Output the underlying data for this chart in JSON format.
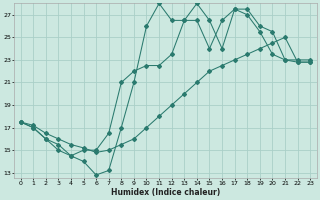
{
  "xlabel": "Humidex (Indice chaleur)",
  "bg_color": "#cce8e0",
  "grid_color": "#aacfc8",
  "line_color": "#2a7a6e",
  "xlim": [
    -0.5,
    23.5
  ],
  "ylim": [
    12.5,
    28.0
  ],
  "xticks": [
    0,
    1,
    2,
    3,
    4,
    5,
    6,
    7,
    8,
    9,
    10,
    11,
    12,
    13,
    14,
    15,
    16,
    17,
    18,
    19,
    20,
    21,
    22,
    23
  ],
  "yticks": [
    13,
    15,
    17,
    19,
    21,
    23,
    25,
    27
  ],
  "line1_x": [
    0,
    1,
    2,
    3,
    4,
    5,
    6,
    7,
    8,
    9,
    10,
    11,
    12,
    13,
    14,
    15,
    16,
    17,
    18,
    19,
    20,
    21,
    22,
    23
  ],
  "line1_y": [
    17.5,
    17.0,
    16.0,
    15.0,
    14.5,
    14.0,
    12.8,
    13.2,
    17.0,
    21.0,
    26.0,
    28.0,
    26.5,
    26.5,
    28.0,
    26.5,
    24.0,
    27.5,
    27.0,
    25.5,
    23.5,
    23.0,
    22.8,
    22.8
  ],
  "line2_x": [
    0,
    1,
    2,
    3,
    4,
    5,
    6,
    7,
    8,
    9,
    10,
    11,
    12,
    13,
    14,
    15,
    16,
    17,
    18,
    19,
    20,
    21,
    22,
    23
  ],
  "line2_y": [
    17.5,
    17.0,
    16.0,
    15.5,
    14.5,
    15.0,
    15.0,
    16.5,
    21.0,
    22.0,
    22.5,
    22.5,
    23.5,
    26.5,
    26.5,
    24.0,
    26.5,
    27.5,
    27.5,
    26.0,
    25.5,
    23.0,
    23.0,
    23.0
  ],
  "line3_x": [
    0,
    1,
    2,
    3,
    4,
    5,
    6,
    7,
    8,
    9,
    10,
    11,
    12,
    13,
    14,
    15,
    16,
    17,
    18,
    19,
    20,
    21,
    22,
    23
  ],
  "line3_y": [
    17.5,
    17.2,
    16.5,
    16.0,
    15.5,
    15.2,
    14.8,
    15.0,
    15.5,
    16.0,
    17.0,
    18.0,
    19.0,
    20.0,
    21.0,
    22.0,
    22.5,
    23.0,
    23.5,
    24.0,
    24.5,
    25.0,
    22.8,
    22.8
  ]
}
